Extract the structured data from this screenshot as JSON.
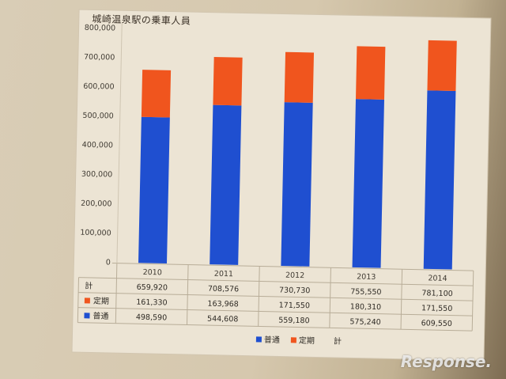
{
  "chart_data": {
    "type": "bar",
    "stacked": true,
    "title": "城崎温泉駅の乗車人員",
    "categories": [
      "2010",
      "2011",
      "2012",
      "2013",
      "2014"
    ],
    "series": [
      {
        "name": "普通",
        "color": "#1f4fd0",
        "values": [
          498590,
          544608,
          559180,
          575240,
          609550
        ],
        "labels": [
          "498,590",
          "544,608",
          "559,180",
          "575,240",
          "609,550"
        ]
      },
      {
        "name": "定期",
        "color": "#f0551e",
        "values": [
          161330,
          163968,
          171550,
          180310,
          171550
        ],
        "labels": [
          "161,330",
          "163,968",
          "171,550",
          "180,310",
          "171,550"
        ]
      }
    ],
    "totals": {
      "name": "計",
      "values": [
        659920,
        708576,
        730730,
        755550,
        781100
      ],
      "labels": [
        "659,920",
        "708,576",
        "730,730",
        "755,550",
        "781,100"
      ]
    },
    "ylim": [
      0,
      800000
    ],
    "yticks": [
      "800,000",
      "700,000",
      "600,000",
      "500,000",
      "400,000",
      "300,000",
      "200,000",
      "100,000",
      "0"
    ],
    "legend_position": "bottom",
    "grid": false
  },
  "watermark": "Response."
}
